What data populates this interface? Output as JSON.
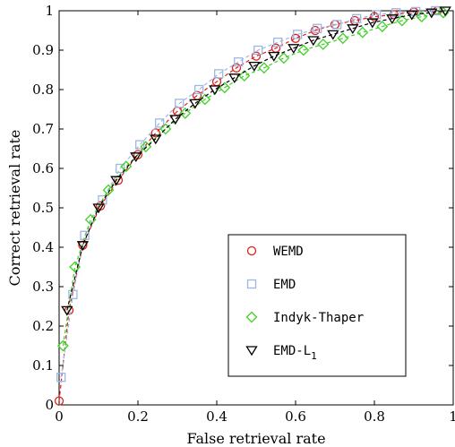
{
  "chart_data": {
    "type": "line",
    "xlabel": "False retrieval rate",
    "ylabel": "Correct retrieval rate",
    "xlim": [
      0,
      1
    ],
    "ylim": [
      0,
      1
    ],
    "xticks": [
      "0",
      "0.2",
      "0.4",
      "0.6",
      "0.8",
      "1"
    ],
    "yticks": [
      "0",
      "0.1",
      "0.2",
      "0.3",
      "0.4",
      "0.5",
      "0.6",
      "0.7",
      "0.8",
      "0.9",
      "1"
    ],
    "grid": false,
    "legend_position": "lower-right",
    "series": [
      {
        "name": "WEMD",
        "marker": "circle",
        "color": "#e0201b",
        "line": "dashed",
        "x": [
          0.0,
          0.025,
          0.06,
          0.105,
          0.15,
          0.2,
          0.245,
          0.3,
          0.35,
          0.4,
          0.45,
          0.5,
          0.55,
          0.6,
          0.65,
          0.7,
          0.75,
          0.8,
          0.85,
          0.9,
          0.96
        ],
        "y": [
          0.01,
          0.24,
          0.405,
          0.505,
          0.57,
          0.635,
          0.69,
          0.745,
          0.785,
          0.82,
          0.855,
          0.885,
          0.905,
          0.93,
          0.95,
          0.965,
          0.975,
          0.985,
          0.99,
          0.997,
          1.0
        ]
      },
      {
        "name": "EMD",
        "marker": "square",
        "color": "#9bb7e6",
        "line": "dashed",
        "x": [
          0.005,
          0.035,
          0.065,
          0.11,
          0.155,
          0.205,
          0.255,
          0.305,
          0.355,
          0.405,
          0.455,
          0.505,
          0.555,
          0.605,
          0.655,
          0.705,
          0.755,
          0.805,
          0.855,
          0.905,
          0.955
        ],
        "y": [
          0.07,
          0.28,
          0.43,
          0.52,
          0.6,
          0.66,
          0.715,
          0.765,
          0.8,
          0.84,
          0.87,
          0.9,
          0.92,
          0.94,
          0.955,
          0.965,
          0.98,
          0.99,
          0.995,
          0.998,
          1.0
        ]
      },
      {
        "name": "Indyk-Thaper",
        "marker": "diamond",
        "color": "#3fd125",
        "line": "dashed",
        "x": [
          0.01,
          0.04,
          0.08,
          0.125,
          0.17,
          0.22,
          0.27,
          0.32,
          0.37,
          0.42,
          0.47,
          0.52,
          0.57,
          0.62,
          0.67,
          0.72,
          0.77,
          0.82,
          0.87,
          0.92,
          0.975
        ],
        "y": [
          0.15,
          0.35,
          0.47,
          0.545,
          0.605,
          0.655,
          0.7,
          0.74,
          0.775,
          0.805,
          0.835,
          0.855,
          0.88,
          0.9,
          0.915,
          0.93,
          0.945,
          0.96,
          0.975,
          0.985,
          0.995
        ]
      },
      {
        "name": "EMD-L",
        "subscript": "1",
        "marker": "triangle-down",
        "color": "#000000",
        "line": "dashed",
        "x": [
          0.02,
          0.06,
          0.1,
          0.145,
          0.195,
          0.245,
          0.295,
          0.345,
          0.395,
          0.445,
          0.495,
          0.545,
          0.595,
          0.645,
          0.695,
          0.745,
          0.795,
          0.845,
          0.895,
          0.945,
          0.98
        ],
        "y": [
          0.24,
          0.405,
          0.5,
          0.57,
          0.63,
          0.675,
          0.725,
          0.765,
          0.8,
          0.83,
          0.86,
          0.885,
          0.905,
          0.925,
          0.94,
          0.955,
          0.97,
          0.98,
          0.99,
          0.995,
          1.0
        ]
      }
    ]
  }
}
